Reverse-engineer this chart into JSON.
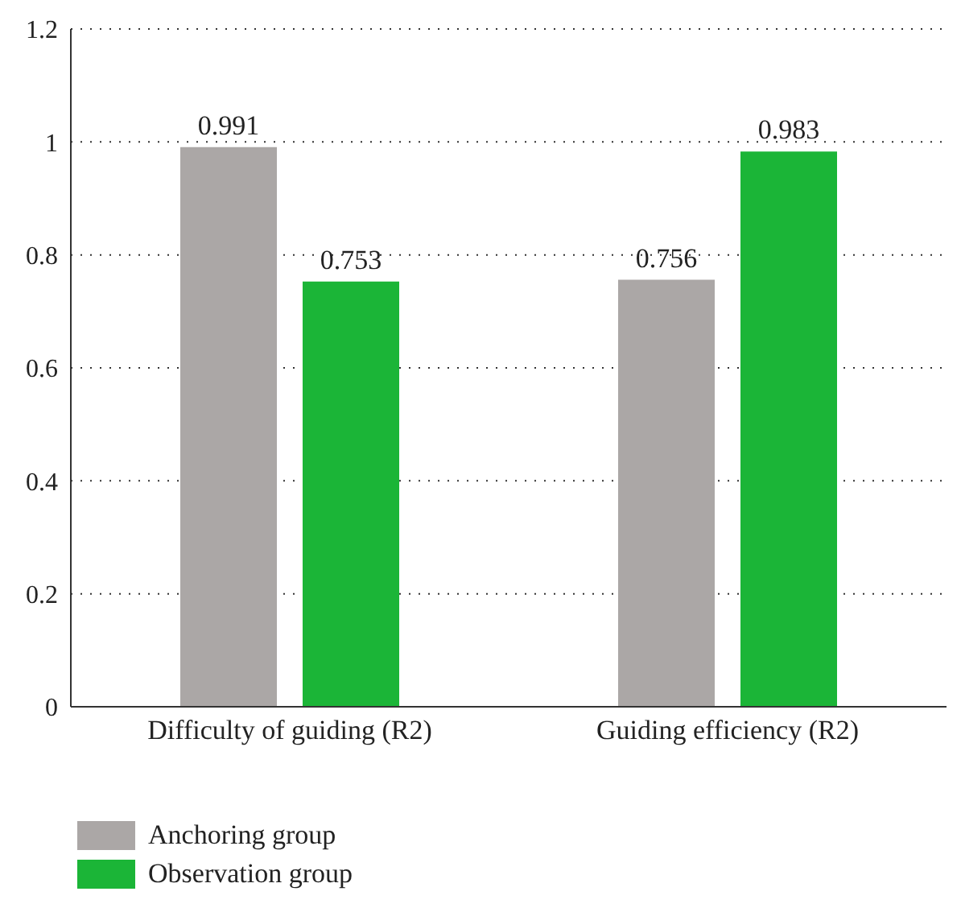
{
  "chart_data": {
    "type": "bar",
    "categories": [
      "Difficulty of guiding (R2)",
      "Guiding efficiency (R2)"
    ],
    "series": [
      {
        "name": "Anchoring group",
        "color": "#aba7a6",
        "values": [
          0.991,
          0.756
        ]
      },
      {
        "name": "Observation group",
        "color": "#1bb537",
        "values": [
          0.753,
          0.983
        ]
      }
    ],
    "ylim": [
      0,
      1.2
    ],
    "yticks": [
      0,
      0.2,
      0.4,
      0.6,
      0.8,
      1,
      1.2
    ],
    "grid": "y",
    "legend": "bottom left",
    "data_labels": true
  }
}
